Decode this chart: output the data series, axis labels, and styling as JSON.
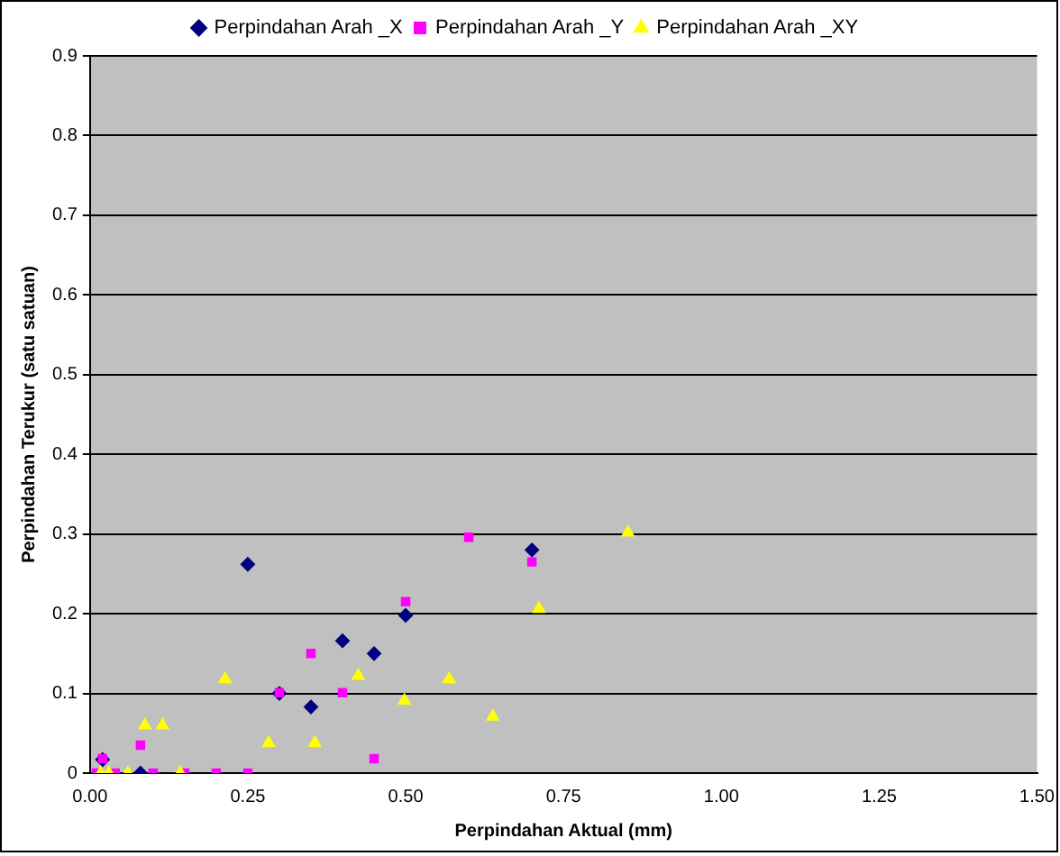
{
  "chart_data": {
    "type": "scatter",
    "xlabel": "Perpindahan Aktual (mm)",
    "ylabel": "Perpindahan Terukur (satu satuan)",
    "series": [
      {
        "name": "Perpindahan Arah _X",
        "color": "#000080",
        "marker": "diamond",
        "x": [
          0.02,
          0.08,
          0.25,
          0.3,
          0.35,
          0.4,
          0.45,
          0.5,
          0.7
        ],
        "values": [
          0.017,
          0,
          0.262,
          0.1,
          0.083,
          0.166,
          0.15,
          0.198,
          0.28
        ]
      },
      {
        "name": "Perpindahan Arah _Y",
        "color": "#ff00ff",
        "marker": "square",
        "x": [
          0.01,
          0.02,
          0.04,
          0.08,
          0.1,
          0.15,
          0.2,
          0.25,
          0.3,
          0.35,
          0.4,
          0.45,
          0.5,
          0.6,
          0.7
        ],
        "values": [
          0,
          0.018,
          0,
          0.035,
          0,
          0,
          0,
          0,
          0.101,
          0.15,
          0.101,
          0.018,
          0.215,
          0.296,
          0.265
        ]
      },
      {
        "name": "Perpindahan Arah _XY",
        "color": "#ffff00",
        "marker": "triangle",
        "x": [
          0.017,
          0.03,
          0.06,
          0.087,
          0.115,
          0.143,
          0.214,
          0.283,
          0.356,
          0.425,
          0.498,
          0.569,
          0.638,
          0.711,
          0.852
        ],
        "values": [
          0,
          0,
          0,
          0.06,
          0.06,
          0,
          0.118,
          0.038,
          0.038,
          0.122,
          0.091,
          0.118,
          0.071,
          0.206,
          0.302
        ]
      }
    ],
    "xlim": [
      0,
      1.5
    ],
    "xticks": [
      {
        "value": 0,
        "label": "0.00"
      },
      {
        "value": 0.25,
        "label": "0.25"
      },
      {
        "value": 0.5,
        "label": "0.50"
      },
      {
        "value": 0.75,
        "label": "0.75"
      },
      {
        "value": 1,
        "label": "1.00"
      },
      {
        "value": 1.25,
        "label": "1.25"
      },
      {
        "value": 1.5,
        "label": "1.50"
      }
    ],
    "ylim": [
      0,
      0.9
    ],
    "yticks": [
      0,
      0.1,
      0.2,
      0.3,
      0.4,
      0.5,
      0.6,
      0.7,
      0.8,
      0.9
    ],
    "grid": "y",
    "legend": "top"
  }
}
